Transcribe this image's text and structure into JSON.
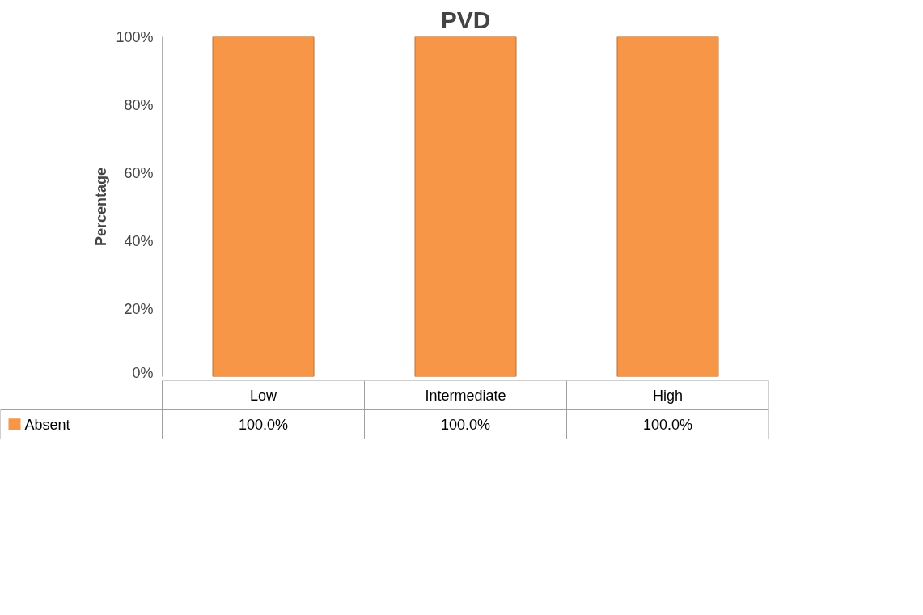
{
  "chart_data": {
    "type": "bar",
    "title": "PVD",
    "ylabel": "Percentage",
    "categories": [
      "Low",
      "Intermediate",
      "High"
    ],
    "series": [
      {
        "name": "Absent",
        "color": "#f79646",
        "values": [
          100,
          100,
          100
        ],
        "value_labels": [
          "100.0%",
          "100.0%",
          "100.0%"
        ]
      }
    ],
    "ylim": [
      0,
      100
    ],
    "yticks": [
      {
        "value": 0,
        "label": "0%"
      },
      {
        "value": 20,
        "label": "20%"
      },
      {
        "value": 40,
        "label": "40%"
      },
      {
        "value": 60,
        "label": "60%"
      },
      {
        "value": 80,
        "label": "80%"
      },
      {
        "value": 100,
        "label": "100%"
      }
    ],
    "legend": "bottom",
    "grid": false
  }
}
